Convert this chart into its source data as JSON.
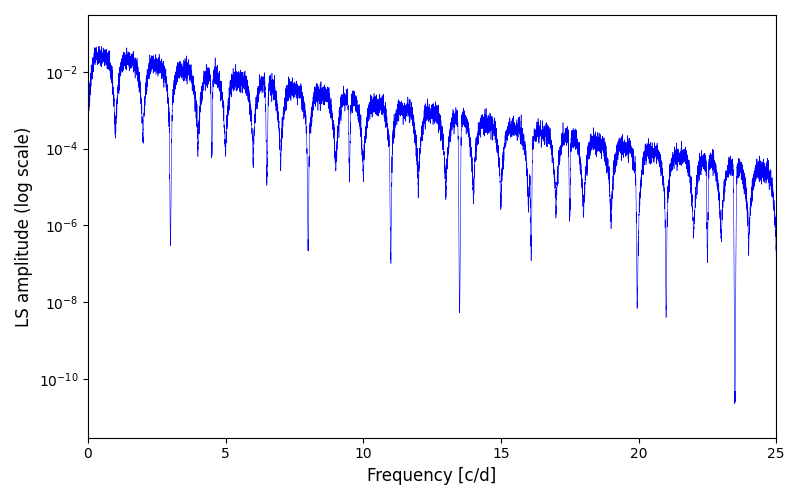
{
  "xlabel": "Frequency [c/d]",
  "ylabel": "LS amplitude (log scale)",
  "line_color": "#0000ff",
  "line_width": 0.4,
  "xlim": [
    0,
    25
  ],
  "ylim": [
    3e-12,
    0.3
  ],
  "figsize": [
    8.0,
    5.0
  ],
  "dpi": 100,
  "freq_max": 25.0,
  "n_points": 10000,
  "seed": 7
}
